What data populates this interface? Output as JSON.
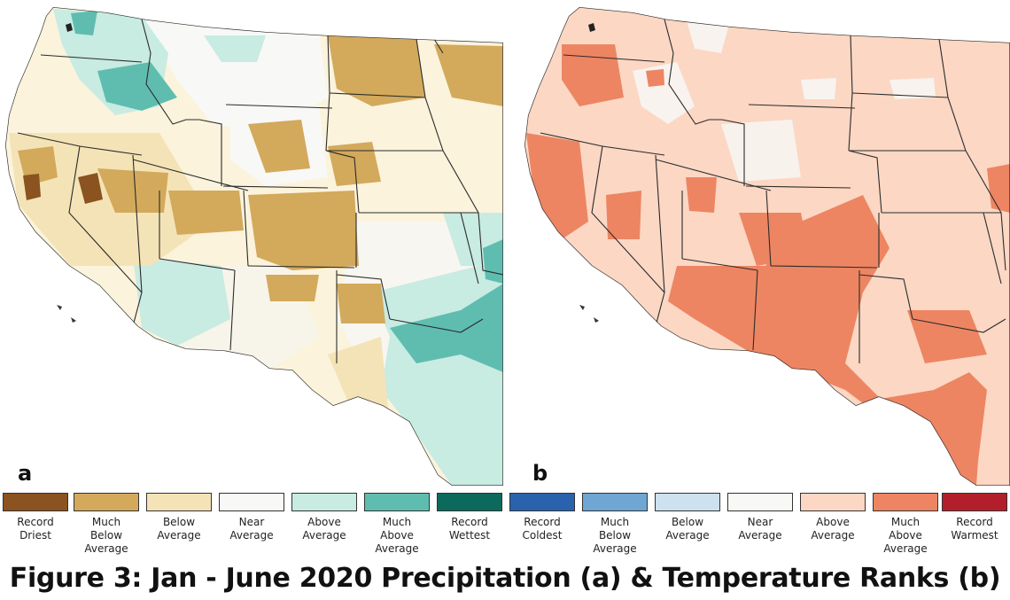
{
  "panels": {
    "a": {
      "letter": "a"
    },
    "b": {
      "letter": "b"
    }
  },
  "legend": {
    "precipitation": [
      {
        "label": "Record\nDriest",
        "color": "#8a531f"
      },
      {
        "label": "Much\nBelow\nAverage",
        "color": "#d3a95c"
      },
      {
        "label": "Below\nAverage",
        "color": "#f4e3b6"
      },
      {
        "label": "Near\nAverage",
        "color": "#f8f8f6"
      },
      {
        "label": "Above\nAverage",
        "color": "#c8ebe2"
      },
      {
        "label": "Much\nAbove\nAverage",
        "color": "#5fbdb0"
      },
      {
        "label": "Record\nWettest",
        "color": "#0c6a5d"
      }
    ],
    "temperature": [
      {
        "label": "Record\nColdest",
        "color": "#2a63ad"
      },
      {
        "label": "Much\nBelow\nAverage",
        "color": "#6ea6d4"
      },
      {
        "label": "Below\nAverage",
        "color": "#cde1ef"
      },
      {
        "label": "Near\nAverage",
        "color": "#f8f8f6"
      },
      {
        "label": "Above\nAverage",
        "color": "#fbd7c4"
      },
      {
        "label": "Much\nAbove\nAverage",
        "color": "#ed8562"
      },
      {
        "label": "Record\nWarmest",
        "color": "#b21f2b"
      }
    ]
  },
  "caption": "Figure 3: Jan - June 2020 Precipitation (a) & Temperature Ranks (b)"
}
